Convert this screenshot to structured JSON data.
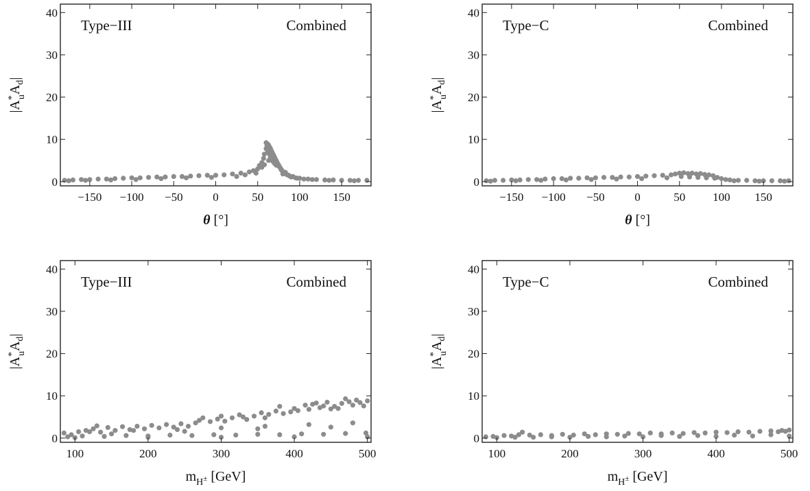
{
  "chart_data": [
    {
      "type": "scatter",
      "model_label": "Type−III",
      "set_label": "Combined",
      "xlabel": "θ [°]",
      "ylabel": "|A*uAd|",
      "xlim": [
        -185,
        185
      ],
      "ylim": [
        -1,
        42
      ],
      "xticks": [
        -150,
        -100,
        -50,
        0,
        50,
        100,
        150
      ],
      "xtick_labels": [
        "−150",
        "−100",
        "−50",
        "0",
        "50",
        "100",
        "150"
      ],
      "yticks": [
        0,
        10,
        20,
        30,
        40
      ],
      "ytick_labels": [
        "0",
        "10",
        "20",
        "30",
        "40"
      ],
      "series": [
        {
          "x": [
            -180,
            -170,
            -160,
            -150,
            -140,
            -130,
            -120,
            -110,
            -100,
            -90,
            -80,
            -70,
            -60,
            -50,
            -40,
            -30,
            -20,
            -10,
            0,
            10,
            20,
            30,
            40,
            45,
            50,
            52,
            55,
            57,
            58,
            60,
            60,
            61,
            62,
            62,
            63,
            63,
            64,
            64,
            65,
            65,
            66,
            66,
            67,
            67,
            68,
            68,
            69,
            70,
            70,
            71,
            72,
            72,
            73,
            74,
            75,
            76,
            77,
            78,
            79,
            80,
            80,
            82,
            84,
            85,
            88,
            90,
            95,
            100,
            110,
            120,
            130,
            140,
            150,
            160,
            170,
            180,
            -175,
            -155,
            -125,
            -95,
            -65,
            -35,
            -5,
            25,
            35,
            48,
            55,
            58,
            63,
            66,
            70,
            74,
            78,
            83,
            87,
            92,
            97,
            105,
            115,
            135,
            165
          ],
          "y": [
            0.3,
            0.4,
            0.5,
            0.5,
            0.6,
            0.6,
            0.7,
            0.8,
            0.9,
            0.9,
            1.0,
            1.1,
            1.1,
            1.2,
            1.2,
            1.3,
            1.4,
            1.5,
            1.5,
            1.6,
            1.8,
            2.0,
            2.3,
            2.6,
            3.0,
            3.8,
            4.5,
            5.5,
            6.5,
            9.2,
            7.8,
            8.5,
            8.9,
            7.2,
            8.6,
            6.8,
            8.2,
            6.5,
            7.9,
            6.0,
            7.4,
            5.6,
            7.0,
            5.2,
            6.6,
            4.8,
            6.2,
            5.8,
            4.3,
            5.4,
            5.0,
            3.9,
            4.6,
            4.2,
            3.9,
            3.5,
            3.2,
            2.9,
            2.6,
            2.4,
            1.8,
            2.1,
            1.8,
            1.6,
            1.3,
            1.1,
            0.9,
            0.8,
            0.6,
            0.5,
            0.4,
            0.4,
            0.3,
            0.3,
            0.3,
            0.3,
            0.2,
            0.3,
            0.4,
            0.5,
            0.7,
            0.9,
            1.0,
            1.2,
            1.6,
            2.0,
            3.4,
            4.0,
            5.0,
            5.5,
            4.6,
            3.8,
            2.8,
            2.2,
            1.5,
            1.2,
            0.8,
            0.6,
            0.5,
            0.3,
            0.2
          ]
        }
      ]
    },
    {
      "type": "scatter",
      "model_label": "Type−C",
      "set_label": "Combined",
      "xlabel": "θ [°]",
      "ylabel": "|A*uAd|",
      "xlim": [
        -185,
        185
      ],
      "ylim": [
        -1,
        42
      ],
      "xticks": [
        -150,
        -100,
        -50,
        0,
        50,
        100,
        150
      ],
      "xtick_labels": [
        "−150",
        "−100",
        "−50",
        "0",
        "50",
        "100",
        "150"
      ],
      "yticks": [
        0,
        10,
        20,
        30,
        40
      ],
      "ytick_labels": [
        "0",
        "10",
        "20",
        "30",
        "40"
      ],
      "series": [
        {
          "x": [
            -180,
            -170,
            -160,
            -150,
            -140,
            -130,
            -120,
            -110,
            -100,
            -90,
            -80,
            -70,
            -60,
            -50,
            -40,
            -30,
            -20,
            -10,
            0,
            10,
            20,
            30,
            40,
            45,
            50,
            55,
            60,
            65,
            70,
            75,
            80,
            85,
            90,
            95,
            100,
            105,
            110,
            120,
            130,
            140,
            150,
            160,
            170,
            180,
            -175,
            -145,
            -115,
            -85,
            -55,
            -25,
            5,
            35,
            52,
            62,
            72,
            82,
            92,
            115,
            145,
            175
          ],
          "y": [
            0.2,
            0.3,
            0.3,
            0.4,
            0.4,
            0.5,
            0.5,
            0.6,
            0.7,
            0.7,
            0.8,
            0.8,
            0.9,
            0.9,
            1.0,
            1.0,
            1.1,
            1.1,
            1.2,
            1.3,
            1.4,
            1.5,
            1.6,
            1.8,
            2.0,
            2.1,
            1.9,
            2.0,
            1.8,
            1.9,
            1.7,
            1.6,
            1.4,
            1.0,
            0.7,
            0.5,
            0.4,
            0.3,
            0.3,
            0.2,
            0.2,
            0.2,
            0.2,
            0.2,
            0.1,
            0.2,
            0.3,
            0.4,
            0.5,
            0.6,
            0.7,
            0.9,
            1.2,
            1.1,
            1.0,
            0.9,
            0.8,
            0.2,
            0.1,
            0.1
          ]
        }
      ]
    },
    {
      "type": "scatter",
      "model_label": "Type−III",
      "set_label": "Combined",
      "xlabel": "mH± [GeV]",
      "ylabel": "|A*uAd|",
      "xlim": [
        80,
        505
      ],
      "ylim": [
        -1,
        42
      ],
      "xticks": [
        100,
        200,
        300,
        400,
        500
      ],
      "xtick_labels": [
        "100",
        "200",
        "300",
        "400",
        "500"
      ],
      "yticks": [
        0,
        10,
        20,
        30,
        40
      ],
      "ytick_labels": [
        "0",
        "10",
        "20",
        "30",
        "40"
      ],
      "series": [
        {
          "x": [
            85,
            95,
            105,
            115,
            125,
            130,
            135,
            145,
            155,
            165,
            175,
            185,
            195,
            205,
            215,
            225,
            235,
            245,
            255,
            265,
            270,
            275,
            285,
            295,
            300,
            305,
            315,
            325,
            330,
            335,
            345,
            355,
            360,
            365,
            375,
            380,
            385,
            395,
            400,
            405,
            415,
            420,
            425,
            430,
            435,
            440,
            445,
            450,
            455,
            460,
            465,
            470,
            475,
            480,
            485,
            490,
            495,
            500,
            90,
            110,
            140,
            170,
            200,
            230,
            260,
            290,
            320,
            350,
            380,
            410,
            440,
            470,
            498,
            120,
            180,
            240,
            300,
            360,
            420,
            480,
            150,
            250,
            350,
            450,
            100,
            200,
            300,
            400,
            500
          ],
          "y": [
            1.2,
            0.8,
            1.5,
            1.8,
            2.2,
            2.9,
            1.4,
            2.5,
            1.8,
            2.7,
            2.0,
            2.8,
            2.2,
            3.0,
            2.4,
            3.2,
            2.6,
            3.4,
            2.8,
            3.6,
            4.2,
            4.8,
            3.9,
            4.5,
            5.2,
            4.0,
            4.8,
            5.5,
            5.0,
            4.4,
            5.2,
            6.0,
            4.8,
            5.6,
            6.4,
            7.5,
            5.8,
            6.2,
            7.0,
            6.5,
            7.8,
            6.8,
            8.0,
            8.3,
            7.2,
            7.6,
            8.5,
            6.9,
            7.5,
            7.0,
            8.2,
            9.3,
            8.6,
            7.8,
            9.0,
            8.4,
            7.6,
            8.8,
            0.3,
            0.5,
            0.4,
            0.6,
            0.5,
            0.7,
            0.6,
            0.8,
            0.7,
            0.9,
            0.8,
            1.0,
            0.9,
            1.1,
            1.2,
            1.5,
            1.8,
            2.0,
            2.4,
            2.8,
            3.2,
            3.6,
            1.0,
            1.6,
            2.2,
            2.6,
            0.1,
            0.2,
            0.2,
            0.3,
            0.3
          ]
        }
      ]
    },
    {
      "type": "scatter",
      "model_label": "Type−C",
      "set_label": "Combined",
      "xlabel": "mH± [GeV]",
      "ylabel": "|A*uAd|",
      "xlim": [
        80,
        505
      ],
      "ylim": [
        -1,
        42
      ],
      "xticks": [
        100,
        200,
        300,
        400,
        500
      ],
      "xtick_labels": [
        "100",
        "200",
        "300",
        "400",
        "500"
      ],
      "yticks": [
        0,
        10,
        20,
        30,
        40
      ],
      "ytick_labels": [
        "0",
        "10",
        "20",
        "30",
        "40"
      ],
      "series": [
        {
          "x": [
            85,
            95,
            110,
            120,
            130,
            135,
            145,
            160,
            175,
            190,
            205,
            220,
            235,
            250,
            265,
            280,
            295,
            310,
            325,
            340,
            355,
            370,
            385,
            400,
            415,
            430,
            445,
            460,
            475,
            485,
            490,
            495,
            500,
            100,
            150,
            200,
            250,
            300,
            350,
            400,
            450,
            500,
            125,
            175,
            225,
            275,
            325,
            375,
            425,
            475
          ],
          "y": [
            0.3,
            0.4,
            0.6,
            0.5,
            0.8,
            1.4,
            0.7,
            0.8,
            0.6,
            0.9,
            0.7,
            1.0,
            0.8,
            1.0,
            0.9,
            1.1,
            1.0,
            1.2,
            1.0,
            1.2,
            1.1,
            1.3,
            1.2,
            1.4,
            1.3,
            1.5,
            1.4,
            1.6,
            1.7,
            1.5,
            1.8,
            1.6,
            1.9,
            0.1,
            0.2,
            0.2,
            0.3,
            0.3,
            0.4,
            0.4,
            0.5,
            0.5,
            0.2,
            0.3,
            0.4,
            0.5,
            0.6,
            0.6,
            0.7,
            0.8
          ]
        }
      ]
    }
  ]
}
